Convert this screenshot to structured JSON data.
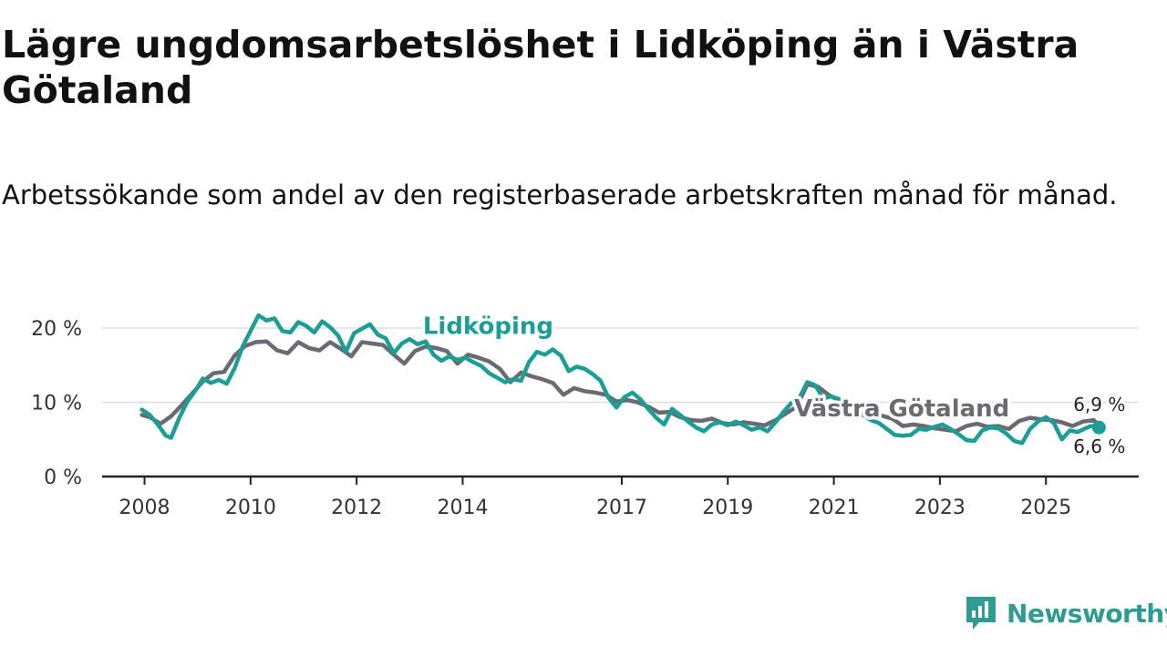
{
  "title": "Lägre ungdomsarbetslöshet i Lidköping än i Västra Götaland",
  "subtitle": "Arbetssökande som andel av den registerbaserade arbetskraften månad för månad.",
  "brand": {
    "name": "Newsworthy",
    "logo_icon": "newsworthy-logo-icon"
  },
  "colors": {
    "lidkoping": "#1b9e95",
    "vastra_gotaland": "#6a6a72",
    "grid": "#dddddd",
    "axis": "#222222"
  },
  "chart_data": {
    "type": "line",
    "title": "Lägre ungdomsarbetslöshet i Lidköping än i Västra Götaland",
    "xlabel": "",
    "ylabel": "",
    "x_ticks": [
      2008,
      2010,
      2012,
      2014,
      2017,
      2019,
      2021,
      2023,
      2025
    ],
    "x_range": [
      2007.2,
      2026.75
    ],
    "y_ticks": [
      {
        "value": 0,
        "label": "0 %"
      },
      {
        "value": 10,
        "label": "10 %"
      },
      {
        "value": 20,
        "label": "20 %"
      }
    ],
    "ylim": [
      0,
      24
    ],
    "grid": true,
    "series": [
      {
        "name": "Västra Götaland",
        "end_label": "6,9 %",
        "points": [
          [
            2007.95,
            8.3
          ],
          [
            2008.1,
            8.0
          ],
          [
            2008.3,
            7.1
          ],
          [
            2008.5,
            8.1
          ],
          [
            2008.7,
            9.6
          ],
          [
            2008.9,
            11.2
          ],
          [
            2009.1,
            12.8
          ],
          [
            2009.3,
            13.9
          ],
          [
            2009.5,
            14.1
          ],
          [
            2009.7,
            16.3
          ],
          [
            2009.9,
            17.6
          ],
          [
            2010.1,
            18.1
          ],
          [
            2010.3,
            18.2
          ],
          [
            2010.5,
            17.0
          ],
          [
            2010.7,
            16.6
          ],
          [
            2010.9,
            18.1
          ],
          [
            2011.1,
            17.3
          ],
          [
            2011.3,
            17.0
          ],
          [
            2011.5,
            18.1
          ],
          [
            2011.7,
            17.2
          ],
          [
            2011.9,
            16.2
          ],
          [
            2012.1,
            18.1
          ],
          [
            2012.3,
            17.9
          ],
          [
            2012.5,
            17.7
          ],
          [
            2012.7,
            16.4
          ],
          [
            2012.9,
            15.2
          ],
          [
            2013.1,
            16.9
          ],
          [
            2013.3,
            17.5
          ],
          [
            2013.5,
            17.3
          ],
          [
            2013.7,
            16.9
          ],
          [
            2013.9,
            15.2
          ],
          [
            2014.1,
            16.4
          ],
          [
            2014.3,
            16.0
          ],
          [
            2014.5,
            15.5
          ],
          [
            2014.7,
            14.5
          ],
          [
            2014.9,
            12.7
          ],
          [
            2015.1,
            14.0
          ],
          [
            2015.3,
            13.5
          ],
          [
            2015.5,
            13.1
          ],
          [
            2015.7,
            12.6
          ],
          [
            2015.9,
            11.0
          ],
          [
            2016.1,
            11.9
          ],
          [
            2016.3,
            11.5
          ],
          [
            2016.5,
            11.3
          ],
          [
            2016.7,
            11.0
          ],
          [
            2016.9,
            10.1
          ],
          [
            2017.1,
            10.3
          ],
          [
            2017.3,
            10.0
          ],
          [
            2017.5,
            9.4
          ],
          [
            2017.7,
            8.6
          ],
          [
            2017.9,
            8.7
          ],
          [
            2018.1,
            8.0
          ],
          [
            2018.3,
            7.6
          ],
          [
            2018.5,
            7.5
          ],
          [
            2018.7,
            7.8
          ],
          [
            2018.9,
            7.2
          ],
          [
            2019.1,
            7.0
          ],
          [
            2019.3,
            7.3
          ],
          [
            2019.5,
            7.1
          ],
          [
            2019.7,
            6.9
          ],
          [
            2019.9,
            7.6
          ],
          [
            2020.1,
            8.5
          ],
          [
            2020.3,
            9.4
          ],
          [
            2020.5,
            12.4
          ],
          [
            2020.7,
            12.1
          ],
          [
            2020.9,
            11.0
          ],
          [
            2021.1,
            10.2
          ],
          [
            2021.3,
            10.0
          ],
          [
            2021.5,
            9.6
          ],
          [
            2021.7,
            9.2
          ],
          [
            2021.9,
            8.2
          ],
          [
            2022.1,
            7.8
          ],
          [
            2022.3,
            6.8
          ],
          [
            2022.5,
            7.0
          ],
          [
            2022.7,
            6.8
          ],
          [
            2022.9,
            6.5
          ],
          [
            2023.1,
            6.3
          ],
          [
            2023.3,
            6.1
          ],
          [
            2023.5,
            6.8
          ],
          [
            2023.7,
            7.1
          ],
          [
            2023.9,
            6.7
          ],
          [
            2024.1,
            6.8
          ],
          [
            2024.3,
            6.4
          ],
          [
            2024.5,
            7.5
          ],
          [
            2024.7,
            7.9
          ],
          [
            2024.9,
            7.7
          ],
          [
            2025.1,
            7.6
          ],
          [
            2025.3,
            7.3
          ],
          [
            2025.5,
            6.8
          ],
          [
            2025.7,
            7.4
          ],
          [
            2025.9,
            7.6
          ],
          [
            2026.0,
            6.9
          ]
        ]
      },
      {
        "name": "Lidköping",
        "end_label": "6,6 %",
        "points": [
          [
            2007.95,
            9.0
          ],
          [
            2008.1,
            8.3
          ],
          [
            2008.25,
            7.0
          ],
          [
            2008.4,
            5.5
          ],
          [
            2008.5,
            5.2
          ],
          [
            2008.65,
            7.8
          ],
          [
            2008.8,
            10.0
          ],
          [
            2009.0,
            12.0
          ],
          [
            2009.1,
            13.2
          ],
          [
            2009.25,
            12.6
          ],
          [
            2009.4,
            13.0
          ],
          [
            2009.55,
            12.5
          ],
          [
            2009.7,
            14.6
          ],
          [
            2009.85,
            17.5
          ],
          [
            2010.0,
            19.6
          ],
          [
            2010.15,
            21.7
          ],
          [
            2010.3,
            21.0
          ],
          [
            2010.45,
            21.3
          ],
          [
            2010.6,
            19.6
          ],
          [
            2010.75,
            19.4
          ],
          [
            2010.9,
            20.8
          ],
          [
            2011.05,
            20.3
          ],
          [
            2011.2,
            19.4
          ],
          [
            2011.35,
            20.9
          ],
          [
            2011.5,
            20.1
          ],
          [
            2011.65,
            19.0
          ],
          [
            2011.8,
            16.8
          ],
          [
            2011.95,
            19.3
          ],
          [
            2012.1,
            19.9
          ],
          [
            2012.25,
            20.5
          ],
          [
            2012.4,
            19.1
          ],
          [
            2012.55,
            18.6
          ],
          [
            2012.7,
            16.6
          ],
          [
            2012.85,
            17.9
          ],
          [
            2013.0,
            18.5
          ],
          [
            2013.15,
            17.8
          ],
          [
            2013.3,
            18.2
          ],
          [
            2013.45,
            16.4
          ],
          [
            2013.6,
            15.6
          ],
          [
            2013.75,
            16.2
          ],
          [
            2013.9,
            15.7
          ],
          [
            2014.05,
            16.0
          ],
          [
            2014.2,
            15.4
          ],
          [
            2014.35,
            14.9
          ],
          [
            2014.5,
            13.9
          ],
          [
            2014.65,
            13.3
          ],
          [
            2014.8,
            12.7
          ],
          [
            2014.95,
            13.1
          ],
          [
            2015.1,
            12.9
          ],
          [
            2015.25,
            15.4
          ],
          [
            2015.4,
            16.8
          ],
          [
            2015.55,
            16.4
          ],
          [
            2015.7,
            17.1
          ],
          [
            2015.85,
            16.3
          ],
          [
            2016.0,
            14.2
          ],
          [
            2016.15,
            14.8
          ],
          [
            2016.3,
            14.5
          ],
          [
            2016.45,
            13.8
          ],
          [
            2016.6,
            12.9
          ],
          [
            2016.75,
            10.6
          ],
          [
            2016.9,
            9.3
          ],
          [
            2017.05,
            10.7
          ],
          [
            2017.2,
            11.3
          ],
          [
            2017.35,
            10.4
          ],
          [
            2017.5,
            9.1
          ],
          [
            2017.65,
            7.9
          ],
          [
            2017.8,
            7.0
          ],
          [
            2017.95,
            9.1
          ],
          [
            2018.1,
            8.3
          ],
          [
            2018.25,
            7.4
          ],
          [
            2018.4,
            6.6
          ],
          [
            2018.55,
            6.1
          ],
          [
            2018.7,
            7.0
          ],
          [
            2018.85,
            7.3
          ],
          [
            2019.0,
            6.9
          ],
          [
            2019.15,
            7.4
          ],
          [
            2019.3,
            6.9
          ],
          [
            2019.45,
            6.3
          ],
          [
            2019.6,
            6.6
          ],
          [
            2019.75,
            6.1
          ],
          [
            2019.9,
            7.3
          ],
          [
            2020.05,
            8.7
          ],
          [
            2020.2,
            9.9
          ],
          [
            2020.35,
            10.6
          ],
          [
            2020.5,
            12.7
          ],
          [
            2020.65,
            12.3
          ],
          [
            2020.8,
            10.5
          ],
          [
            2020.95,
            10.8
          ],
          [
            2021.1,
            10.4
          ],
          [
            2021.25,
            9.7
          ],
          [
            2021.4,
            9.0
          ],
          [
            2021.55,
            8.3
          ],
          [
            2021.7,
            7.6
          ],
          [
            2021.85,
            7.2
          ],
          [
            2022.0,
            6.4
          ],
          [
            2022.15,
            5.6
          ],
          [
            2022.3,
            5.5
          ],
          [
            2022.45,
            5.6
          ],
          [
            2022.6,
            6.4
          ],
          [
            2022.75,
            6.3
          ],
          [
            2022.9,
            6.7
          ],
          [
            2023.05,
            7.0
          ],
          [
            2023.2,
            6.4
          ],
          [
            2023.35,
            5.7
          ],
          [
            2023.5,
            4.9
          ],
          [
            2023.65,
            4.8
          ],
          [
            2023.8,
            6.2
          ],
          [
            2023.95,
            6.6
          ],
          [
            2024.1,
            6.5
          ],
          [
            2024.25,
            5.8
          ],
          [
            2024.4,
            4.8
          ],
          [
            2024.55,
            4.5
          ],
          [
            2024.7,
            6.4
          ],
          [
            2024.85,
            7.4
          ],
          [
            2025.0,
            8.0
          ],
          [
            2025.15,
            7.2
          ],
          [
            2025.3,
            5.0
          ],
          [
            2025.45,
            6.2
          ],
          [
            2025.6,
            6.0
          ],
          [
            2025.75,
            6.5
          ],
          [
            2025.85,
            6.8
          ],
          [
            2026.0,
            6.6
          ]
        ]
      }
    ],
    "annotations": [
      {
        "series": "Lidköping",
        "text": "Lidköping",
        "at": [
          2013.25,
          19.2
        ]
      },
      {
        "series": "Västra Götaland",
        "text": "Västra Götaland",
        "at": [
          2020.25,
          8.1
        ]
      }
    ]
  }
}
